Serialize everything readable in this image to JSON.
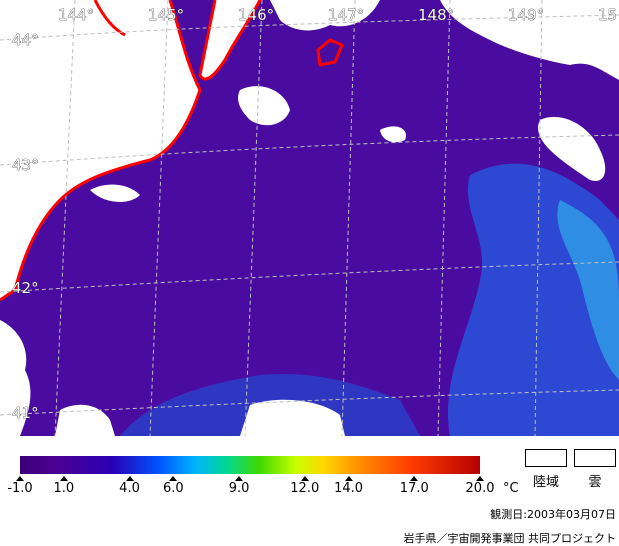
{
  "map": {
    "longitude_labels": [
      "144°",
      "145°",
      "146°",
      "147°",
      "148°",
      "149°",
      "15"
    ],
    "latitude_labels": [
      "44°",
      "43°",
      "42°",
      "41°"
    ],
    "coastline_color": "#ff0000",
    "ocean_color": "#4a0ca0",
    "land_cloud_color": "#ffffff",
    "grid_color": "#bfbfbf"
  },
  "legend": {
    "colorbar_ticks": [
      "-1.0",
      "1.0",
      "4.0",
      "6.0",
      "9.0",
      "12.0",
      "14.0",
      "17.0",
      "20.0"
    ],
    "colorbar_tick_values": [
      -1.0,
      1.0,
      4.0,
      6.0,
      9.0,
      12.0,
      14.0,
      17.0,
      20.0
    ],
    "range": [
      -1.0,
      20.0
    ],
    "unit": "°C",
    "land_label": "陸域",
    "cloud_label": "雲"
  },
  "observation_date": "観測日:2003年03月07日",
  "credit": "岩手県／宇宙開発事業団 共同プロジェクト"
}
